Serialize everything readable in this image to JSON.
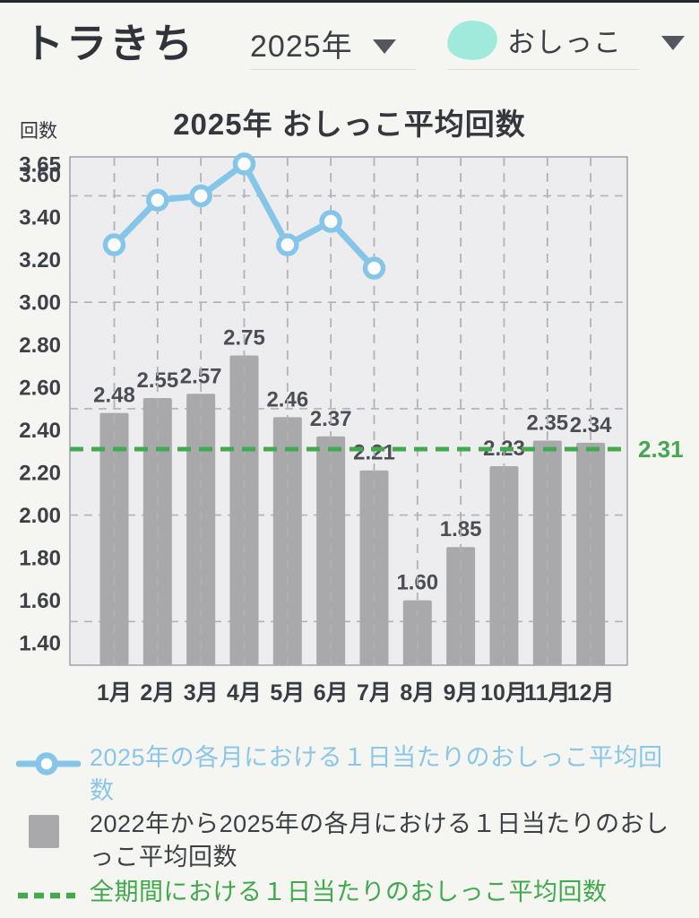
{
  "header": {
    "pet_name": "トラきち",
    "year_selector": {
      "value": "2025年"
    },
    "type_selector": {
      "value": "おしっこ",
      "icon": "pee-blob-icon",
      "icon_color": "#9FEADB"
    }
  },
  "chart_data": {
    "type": "combo",
    "title": "2025年 おしっこ平均回数",
    "y_axis_unit": "回数",
    "categories": [
      "1月",
      "2月",
      "3月",
      "4月",
      "5月",
      "6月",
      "7月",
      "8月",
      "9月",
      "10月",
      "11月",
      "12月"
    ],
    "series": [
      {
        "name": "2025年の各月における１日当たりのおしっこ平均回数",
        "type": "line",
        "color": "#85C6E8",
        "values": [
          3.27,
          3.48,
          3.5,
          3.65,
          3.27,
          3.38,
          3.16,
          null,
          null,
          null,
          null,
          null
        ]
      },
      {
        "name": "2022年から2025年の各月における１日当たりのおしっこ平均回数",
        "type": "bar",
        "color": "#A9A9AC",
        "values": [
          2.48,
          2.55,
          2.57,
          2.75,
          2.46,
          2.37,
          2.21,
          1.6,
          1.85,
          2.23,
          2.35,
          2.34
        ]
      },
      {
        "name": "全期間における１日当たりのおしっこ平均回数",
        "type": "reference_line",
        "color": "#44A94E",
        "value": 2.31
      }
    ],
    "y_ticks": [
      1.4,
      1.6,
      1.8,
      2.0,
      2.2,
      2.4,
      2.6,
      2.8,
      3.0,
      3.2,
      3.4,
      3.6,
      3.65
    ],
    "gridline_values": [
      1.5,
      2.0,
      2.5,
      3.0,
      3.5
    ],
    "ylim": [
      1.295,
      3.683
    ],
    "grid": true,
    "legend_position": "bottom"
  },
  "legend": {
    "items": [
      {
        "label": "2025年の各月における１日当たりのおしっこ平均回数",
        "marker": "line-circle",
        "color": "#85C6E8",
        "label_color": "#8AC6E8"
      },
      {
        "label": "2022年から2025年の各月における１日当たりのおしっこ平均回数",
        "marker": "square",
        "color": "#A9A9AC",
        "label_color": "#3B4045"
      },
      {
        "label": "全期間における１日当たりのおしっこ平均回数",
        "marker": "dashed-line",
        "color": "#44A94E",
        "label_color": "#3FA94C"
      }
    ]
  },
  "colors": {
    "page_bg": "#F5F5F2",
    "plot_bg": "#EDEDEF",
    "grid": "#ADB3BA",
    "axis_text": "#3C4148",
    "bar_label_text": "#4B4F55"
  }
}
